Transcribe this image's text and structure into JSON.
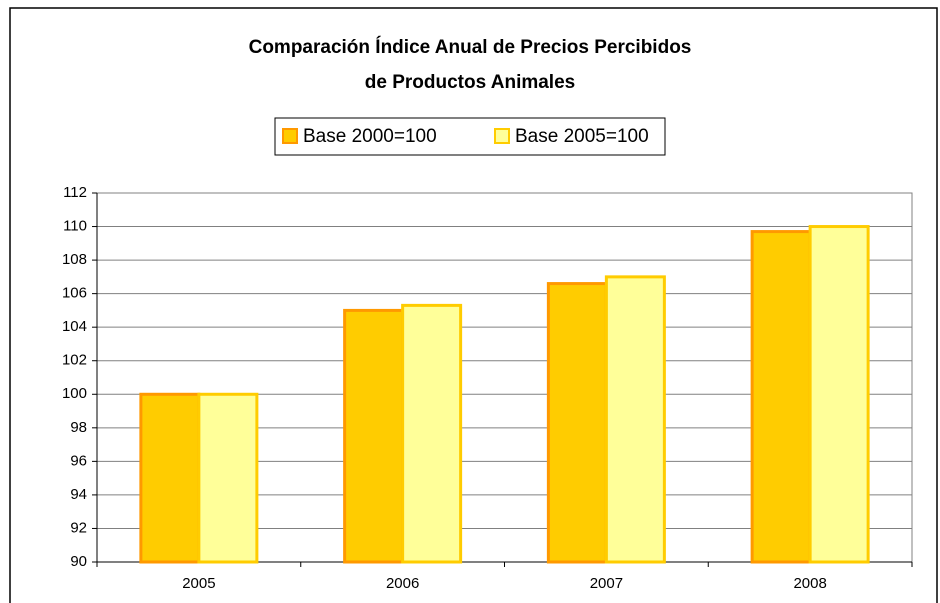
{
  "chart_data": {
    "type": "bar",
    "title": [
      "Comparación Índice Anual de Precios Percibidos",
      "de Productos Animales"
    ],
    "categories": [
      "2005",
      "2006",
      "2007",
      "2008"
    ],
    "series": [
      {
        "name": "Base 2000=100",
        "color": "#ffcc00",
        "edge": "#ff9900",
        "values": [
          100,
          105.0,
          106.6,
          109.7
        ]
      },
      {
        "name": "Base 2005=100",
        "color": "#ffff99",
        "edge": "#ffcc00",
        "values": [
          100,
          105.3,
          107.0,
          110.0
        ]
      }
    ],
    "ylim": [
      90,
      112
    ],
    "yticks": [
      90,
      92,
      94,
      96,
      98,
      100,
      102,
      104,
      106,
      108,
      110,
      112
    ],
    "grid": true,
    "legend": "top"
  }
}
